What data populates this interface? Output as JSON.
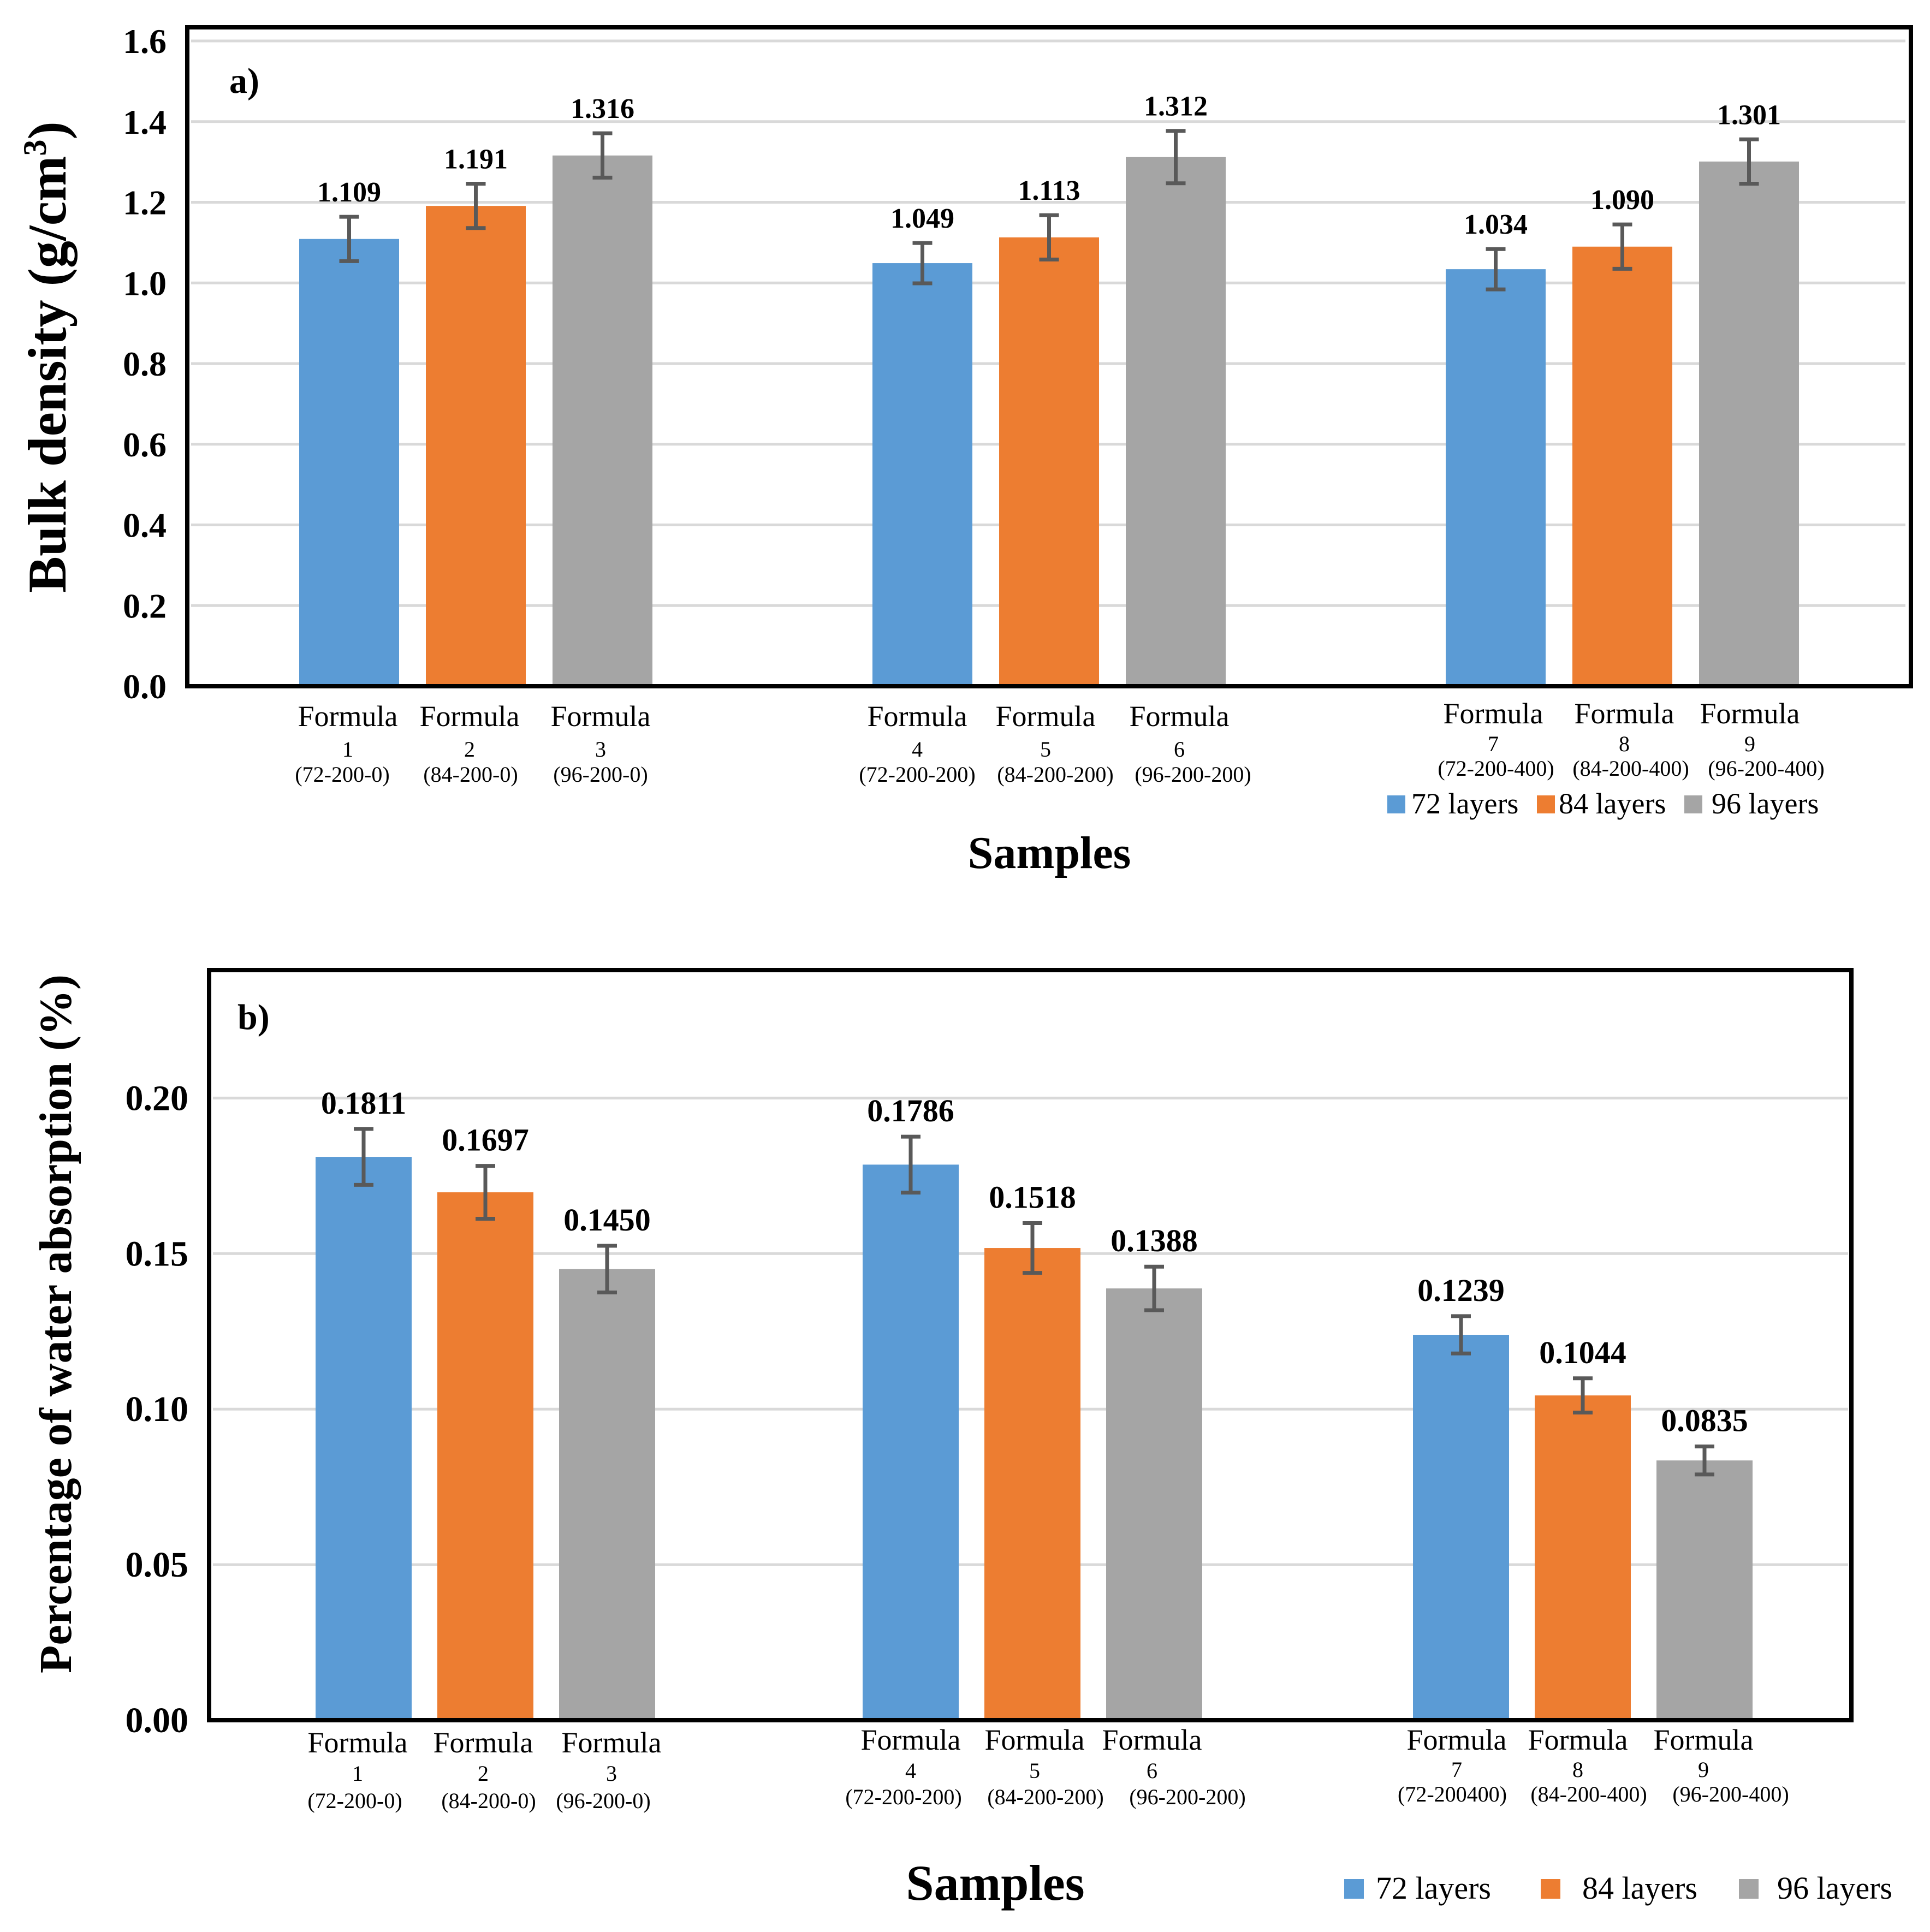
{
  "colors": {
    "blue": "#5b9bd5",
    "orange": "#ed7d31",
    "gray": "#a5a5a5",
    "grid": "#d9d9d9",
    "errorbar": "#595959",
    "axis": "#000000"
  },
  "chart_data": [
    {
      "type": "bar",
      "panel_label": "a)",
      "title": "",
      "ylabel_main": "Bulk density (g/cm",
      "ylabel_sup": "3",
      "ylabel_end": ")",
      "xlabel": "Samples",
      "ylim": [
        0,
        1.6
      ],
      "yticks": [
        {
          "value": 0.0,
          "label": "0.0"
        },
        {
          "value": 0.2,
          "label": "0.2"
        },
        {
          "value": 0.4,
          "label": "0.4"
        },
        {
          "value": 0.6,
          "label": "0.6"
        },
        {
          "value": 0.8,
          "label": "0.8"
        },
        {
          "value": 1.0,
          "label": "1.0"
        },
        {
          "value": 1.2,
          "label": "1.2"
        },
        {
          "value": 1.4,
          "label": "1.4"
        },
        {
          "value": 1.6,
          "label": "1.6"
        }
      ],
      "grid": true,
      "legend": {
        "position": "bottom-right",
        "entries": [
          "72 layers",
          "84 layers",
          "96 layers"
        ]
      },
      "bars": [
        {
          "group": 0,
          "series": 0,
          "value": 1.109,
          "label": "1.109",
          "error": 0.055,
          "cat": [
            "Formula",
            "1",
            "(72-200-0)"
          ]
        },
        {
          "group": 0,
          "series": 1,
          "value": 1.191,
          "label": "1.191",
          "error": 0.055,
          "cat": [
            "Formula",
            "2",
            "(84-200-0)"
          ]
        },
        {
          "group": 0,
          "series": 2,
          "value": 1.316,
          "label": "1.316",
          "error": 0.055,
          "cat": [
            "Formula",
            "3",
            "(96-200-0)"
          ]
        },
        {
          "group": 1,
          "series": 0,
          "value": 1.049,
          "label": "1.049",
          "error": 0.05,
          "cat": [
            "Formula",
            "4",
            "(72-200-200)"
          ]
        },
        {
          "group": 1,
          "series": 1,
          "value": 1.113,
          "label": "1.113",
          "error": 0.055,
          "cat": [
            "Formula",
            "5",
            "(84-200-200)"
          ]
        },
        {
          "group": 1,
          "series": 2,
          "value": 1.312,
          "label": "1.312",
          "error": 0.065,
          "cat": [
            "Formula",
            "6",
            "(96-200-200)"
          ]
        },
        {
          "group": 2,
          "series": 0,
          "value": 1.034,
          "label": "1.034",
          "error": 0.05,
          "cat": [
            "Formula",
            "7",
            "(72-200-400)"
          ]
        },
        {
          "group": 2,
          "series": 1,
          "value": 1.09,
          "label": "1.090",
          "error": 0.055,
          "cat": [
            "Formula",
            "8",
            "(84-200-400)"
          ]
        },
        {
          "group": 2,
          "series": 2,
          "value": 1.301,
          "label": "1.301",
          "error": 0.055,
          "cat": [
            "Formula",
            "9",
            "(96-200-400)"
          ]
        }
      ]
    },
    {
      "type": "bar",
      "panel_label": "b)",
      "title": "",
      "ylabel_main": "Percentage of water absorption (%)",
      "ylabel_sup": "",
      "ylabel_end": "",
      "xlabel": "Samples",
      "ylim": [
        0,
        0.245
      ],
      "yticks": [
        {
          "value": 0.0,
          "label": "0.00"
        },
        {
          "value": 0.05,
          "label": "0.05"
        },
        {
          "value": 0.1,
          "label": "0.10"
        },
        {
          "value": 0.15,
          "label": "0.15"
        },
        {
          "value": 0.2,
          "label": "0.20"
        }
      ],
      "grid": true,
      "legend": {
        "position": "bottom-right",
        "entries": [
          "72 layers",
          "84 layers",
          "96 layers"
        ]
      },
      "bars": [
        {
          "group": 0,
          "series": 0,
          "value": 0.1811,
          "label": "0.1811",
          "error": 0.009,
          "cat": [
            "Formula",
            "1",
            "(72-200-0)"
          ]
        },
        {
          "group": 0,
          "series": 1,
          "value": 0.1697,
          "label": "0.1697",
          "error": 0.0085,
          "cat": [
            "Formula",
            "2",
            "(84-200-0)"
          ]
        },
        {
          "group": 0,
          "series": 2,
          "value": 0.145,
          "label": "0.1450",
          "error": 0.0075,
          "cat": [
            "Formula",
            "3",
            "(96-200-0)"
          ]
        },
        {
          "group": 1,
          "series": 0,
          "value": 0.1786,
          "label": "0.1786",
          "error": 0.009,
          "cat": [
            "Formula",
            "4",
            "(72-200-200)"
          ]
        },
        {
          "group": 1,
          "series": 1,
          "value": 0.1518,
          "label": "0.1518",
          "error": 0.008,
          "cat": [
            "Formula",
            "5",
            "(84-200-200)"
          ]
        },
        {
          "group": 1,
          "series": 2,
          "value": 0.1388,
          "label": "0.1388",
          "error": 0.007,
          "cat": [
            "Formula",
            "6",
            "(96-200-200)"
          ]
        },
        {
          "group": 2,
          "series": 0,
          "value": 0.1239,
          "label": "0.1239",
          "error": 0.006,
          "cat": [
            "Formula",
            "7",
            "(72-200400)"
          ]
        },
        {
          "group": 2,
          "series": 1,
          "value": 0.1044,
          "label": "0.1044",
          "error": 0.0055,
          "cat": [
            "Formula",
            "8",
            "(84-200-400)"
          ]
        },
        {
          "group": 2,
          "series": 2,
          "value": 0.0835,
          "label": "0.0835",
          "error": 0.0045,
          "cat": [
            "Formula",
            "9",
            "(96-200-400)"
          ]
        }
      ]
    }
  ]
}
